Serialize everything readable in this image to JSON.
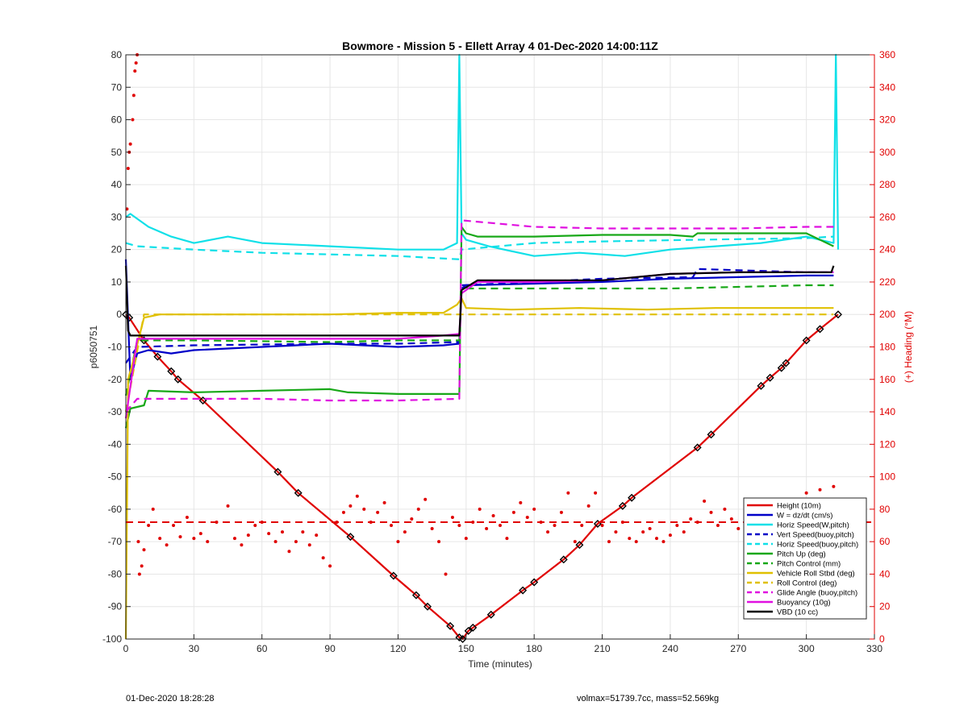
{
  "chart_data": {
    "type": "line",
    "title": "Bowmore - Mission 5 - Ellett Array 4 01-Dec-2020 14:00:11Z",
    "xlabel": "Time (minutes)",
    "ylabel": "p6050751",
    "y2label": "(+) Heading (°M)",
    "xlim": [
      0,
      330
    ],
    "ylim": [
      -100,
      80
    ],
    "y2lim": [
      0,
      360
    ],
    "xticks": [
      "0",
      "30",
      "60",
      "90",
      "120",
      "150",
      "180",
      "210",
      "240",
      "270",
      "300",
      "330"
    ],
    "yticks": [
      "-100",
      "-90",
      "-80",
      "-70",
      "-60",
      "-50",
      "-40",
      "-30",
      "-20",
      "-10",
      "0",
      "10",
      "20",
      "30",
      "40",
      "50",
      "60",
      "70",
      "80"
    ],
    "y2ticks": [
      "0",
      "20",
      "40",
      "60",
      "80",
      "100",
      "120",
      "140",
      "160",
      "180",
      "200",
      "220",
      "240",
      "260",
      "280",
      "300",
      "320",
      "340",
      "360"
    ],
    "grid": true,
    "legend_position": "bottom-right",
    "series": [
      {
        "name": "Height (10m)",
        "color": "#e00000",
        "style": "solid-marker",
        "x": [
          0,
          1.5,
          8,
          14,
          20,
          23,
          34,
          67,
          76,
          99,
          118,
          128,
          133,
          143,
          147,
          148.5,
          151,
          153,
          161,
          175,
          180,
          193,
          200,
          208,
          219,
          223,
          252,
          258,
          280,
          284,
          289,
          291,
          300,
          306,
          314
        ],
        "values": [
          0,
          -1,
          -8,
          -13,
          -17.5,
          -20,
          -26.5,
          -48.5,
          -55,
          -68.5,
          -80.5,
          -86.5,
          -90,
          -96,
          -99.5,
          -100,
          -97.5,
          -96.5,
          -92.5,
          -85,
          -82.5,
          -75.5,
          -71,
          -64.5,
          -59,
          -56.5,
          -41,
          -37,
          -22,
          -19.5,
          -16.5,
          -15,
          -8,
          -4.5,
          0
        ]
      },
      {
        "name": "W = dz/dt (cm/s)",
        "color": "#0000c8",
        "style": "solid",
        "x": [
          0,
          2,
          5,
          10,
          20,
          30,
          60,
          90,
          120,
          140,
          147,
          148,
          150,
          180,
          210,
          240,
          270,
          300,
          312
        ],
        "values": [
          17,
          -20,
          -12,
          -11,
          -12,
          -11,
          -10,
          -9,
          -10,
          -9.5,
          -9,
          8,
          9,
          9.5,
          10,
          11,
          11.5,
          12,
          12
        ]
      },
      {
        "name": "Horiz Speed(W,pitch)",
        "color": "#10e0e8",
        "style": "solid",
        "x": [
          0,
          2,
          10,
          20,
          30,
          45,
          60,
          90,
          120,
          140,
          146,
          147,
          148,
          150,
          160,
          180,
          200,
          220,
          240,
          260,
          280,
          300,
          312,
          313,
          314
        ],
        "values": [
          30,
          31,
          27,
          24,
          22,
          24,
          22,
          21,
          20,
          20,
          22,
          80,
          25,
          23,
          21,
          18,
          19,
          18,
          20,
          21,
          22,
          24,
          22,
          80,
          20
        ]
      },
      {
        "name": "Vert Speed(buoy,pitch)",
        "color": "#0000c8",
        "style": "dash",
        "x": [
          0,
          5,
          30,
          90,
          120,
          147,
          148,
          180,
          210,
          250,
          252,
          300,
          312
        ],
        "values": [
          -15,
          -10,
          -9.5,
          -9,
          -9,
          -8.5,
          9,
          10,
          11,
          11.5,
          14,
          13,
          13
        ]
      },
      {
        "name": "Horiz Speed(buoy,pitch)",
        "color": "#10e0e8",
        "style": "dash",
        "x": [
          0,
          5,
          30,
          60,
          90,
          120,
          147,
          148,
          180,
          210,
          250,
          300,
          312
        ],
        "values": [
          22,
          21,
          20,
          19,
          18.5,
          18,
          17,
          20,
          22,
          22.5,
          23,
          23.5,
          24
        ]
      },
      {
        "name": "Pitch Up (deg)",
        "color": "#18a818",
        "style": "solid",
        "x": [
          0,
          2,
          8,
          10,
          30,
          60,
          90,
          98,
          120,
          147,
          148,
          150,
          155,
          180,
          210,
          240,
          250,
          252,
          280,
          300,
          312
        ],
        "values": [
          -35,
          -29,
          -28,
          -23.5,
          -24,
          -23.5,
          -23,
          -24,
          -24.5,
          -24.5,
          27,
          25,
          24,
          24,
          24.5,
          24.5,
          24,
          25,
          25,
          25,
          21
        ]
      },
      {
        "name": "Pitch Control (mm)",
        "color": "#18a818",
        "style": "dash",
        "x": [
          0,
          5,
          30,
          90,
          120,
          147,
          148,
          180,
          210,
          240,
          270,
          300,
          312
        ],
        "values": [
          -25,
          -8,
          -8,
          -8.5,
          -8,
          -8,
          8,
          8,
          8,
          8,
          8.5,
          9,
          9
        ]
      },
      {
        "name": "Vehicle Roll Stbd (deg)",
        "color": "#e0c000",
        "style": "solid",
        "x": [
          0,
          1,
          3,
          8,
          15,
          30,
          60,
          90,
          120,
          140,
          146,
          148,
          150,
          170,
          200,
          230,
          260,
          290,
          312
        ],
        "values": [
          -100,
          -20,
          -15,
          -1,
          0,
          0,
          0,
          0,
          0.5,
          0.5,
          3,
          5,
          2,
          1.5,
          2,
          1.5,
          2,
          2,
          2
        ]
      },
      {
        "name": "Roll Control (deg)",
        "color": "#e0c000",
        "style": "dash",
        "x": [
          0,
          8,
          30,
          90,
          120,
          147,
          148,
          180,
          210,
          240,
          270,
          300,
          312
        ],
        "values": [
          -30,
          0,
          0,
          0,
          0,
          0,
          0,
          0,
          0,
          0,
          0,
          0,
          0
        ]
      },
      {
        "name": "Glide Angle (buoy,pitch)",
        "color": "#e010e0",
        "style": "dash",
        "x": [
          0,
          5,
          30,
          60,
          90,
          120,
          147,
          148,
          180,
          210,
          240,
          270,
          300,
          312
        ],
        "values": [
          -30,
          -26,
          -26,
          -26,
          -26.5,
          -26.5,
          -26,
          29,
          27,
          26.5,
          26.5,
          26.5,
          27,
          27
        ]
      },
      {
        "name": "Buoyancy (10g)",
        "color": "#e010e0",
        "style": "solid",
        "x": [
          0,
          5,
          30,
          60,
          90,
          120,
          140,
          147,
          148,
          155,
          180,
          210,
          240,
          270,
          300,
          312
        ],
        "values": [
          -32,
          -7.5,
          -7.5,
          -7.5,
          -7.5,
          -7.5,
          -6.5,
          -6,
          6.5,
          10,
          10,
          10.5,
          12.5,
          13,
          13,
          13
        ]
      },
      {
        "name": "VBD (10 cc)",
        "color": "#000000",
        "style": "solid",
        "x": [
          0,
          1,
          2,
          30,
          60,
          90,
          120,
          147,
          148,
          155,
          180,
          210,
          240,
          270,
          300,
          311,
          312
        ],
        "values": [
          15,
          -5,
          -6.5,
          -6.5,
          -6.5,
          -6.5,
          -6.5,
          -6.5,
          7.5,
          10.5,
          10.5,
          10.5,
          12.5,
          13,
          13,
          13,
          15
        ]
      }
    ],
    "heading_series": {
      "name": "Heading",
      "color": "#e00000",
      "axis": "right",
      "style": "dots",
      "x": [
        0.5,
        1,
        1.5,
        2,
        3,
        3.5,
        4,
        4.5,
        5,
        5.5,
        6,
        7,
        8,
        10,
        12,
        15,
        18,
        21,
        24,
        27,
        30,
        33,
        36,
        40,
        45,
        48,
        51,
        54,
        57,
        60,
        63,
        66,
        69,
        72,
        75,
        78,
        81,
        84,
        87,
        90,
        93,
        96,
        99,
        102,
        105,
        108,
        111,
        114,
        117,
        120,
        123,
        126,
        129,
        132,
        135,
        138,
        141,
        144,
        147,
        150,
        153,
        156,
        159,
        162,
        165,
        168,
        171,
        174,
        177,
        180,
        183,
        186,
        189,
        192,
        195,
        198,
        201,
        204,
        207,
        210,
        213,
        216,
        219,
        222,
        225,
        228,
        231,
        234,
        237,
        240,
        243,
        246,
        249,
        252,
        255,
        258,
        261,
        264,
        267,
        270,
        273,
        276,
        279,
        282,
        285,
        288,
        291,
        294,
        297,
        300,
        303,
        306,
        309,
        312
      ],
      "values": [
        265,
        290,
        300,
        305,
        320,
        335,
        350,
        355,
        360,
        60,
        40,
        45,
        55,
        70,
        80,
        62,
        58,
        70,
        63,
        75,
        62,
        65,
        60,
        72,
        82,
        62,
        58,
        64,
        70,
        72,
        65,
        60,
        66,
        54,
        60,
        66,
        58,
        64,
        50,
        45,
        72,
        78,
        82,
        88,
        80,
        72,
        78,
        84,
        70,
        60,
        66,
        74,
        80,
        86,
        68,
        60,
        40,
        75,
        70,
        62,
        72,
        80,
        68,
        76,
        70,
        62,
        78,
        84,
        75,
        80,
        72,
        66,
        70,
        78,
        90,
        60,
        70,
        82,
        90,
        70,
        60,
        66,
        72,
        62,
        60,
        66,
        68,
        62,
        60,
        64,
        70,
        66,
        74,
        72,
        85,
        78,
        70,
        80,
        74,
        68,
        78,
        84,
        74,
        66,
        76,
        86,
        78,
        64,
        82,
        90,
        78,
        92,
        86,
        94
      ]
    },
    "heading_mean": {
      "y2": 72,
      "color": "#e00000",
      "style": "dash"
    }
  },
  "footer": {
    "left": "01-Dec-2020 18:28:28",
    "right": "volmax=51739.7cc, mass=52.569kg"
  }
}
